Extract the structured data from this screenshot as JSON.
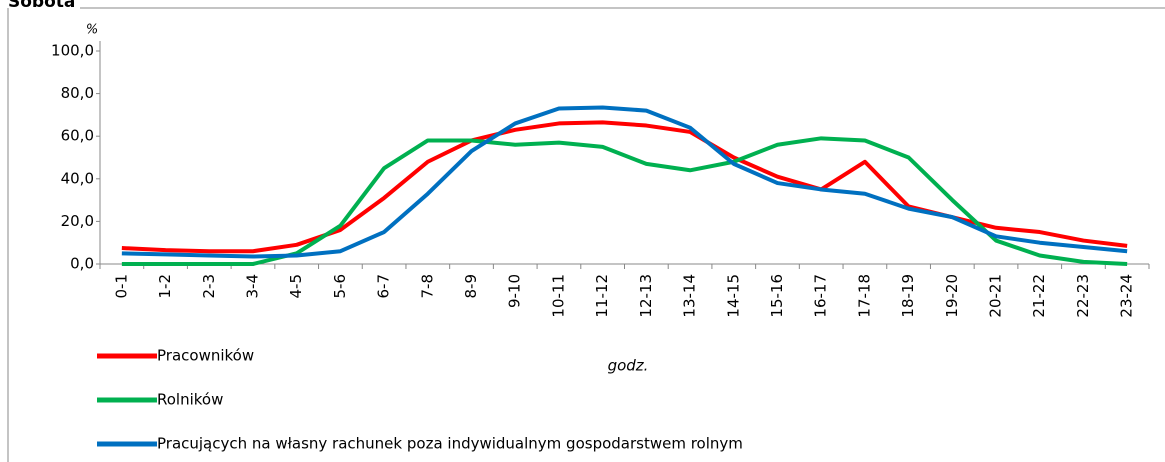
{
  "chart_data": {
    "type": "line",
    "title": "Sobota",
    "ylabel": "%",
    "xlabel": "godz.",
    "categories": [
      "0-1",
      "1-2",
      "2-3",
      "3-4",
      "4-5",
      "5-6",
      "6-7",
      "7-8",
      "8-9",
      "9-10",
      "10-11",
      "11-12",
      "12-13",
      "13-14",
      "14-15",
      "15-16",
      "16-17",
      "17-18",
      "18-19",
      "19-20",
      "20-21",
      "21-22",
      "22-23",
      "23-24"
    ],
    "series": [
      {
        "name": "Pracowników",
        "color": "#ff0000",
        "values": [
          7.5,
          6.5,
          6,
          6,
          9,
          16,
          31,
          48,
          58,
          63,
          66,
          66.5,
          65,
          62,
          50,
          41,
          35,
          48,
          27,
          22,
          17,
          15,
          11,
          8.5
        ]
      },
      {
        "name": "Rolników",
        "color": "#00b050",
        "values": [
          0,
          0,
          0,
          0,
          5,
          18,
          45,
          58,
          58,
          56,
          57,
          55,
          47,
          44,
          48,
          56,
          59,
          58,
          50,
          30,
          11,
          4,
          1,
          0
        ]
      },
      {
        "name": "Pracujących na własny rachunek poza indywidualnym gospodarstwem rolnym",
        "color": "#0070c0",
        "values": [
          5,
          4.5,
          4,
          3.5,
          4,
          6,
          15,
          33,
          53,
          66,
          73,
          73.5,
          72,
          64,
          47,
          38,
          35,
          33,
          26,
          22,
          13,
          10,
          8,
          6
        ]
      }
    ],
    "ylim": [
      0,
      100
    ],
    "yticks": [
      {
        "value": 0,
        "label": "0,0"
      },
      {
        "value": 20,
        "label": "20,0"
      },
      {
        "value": 40,
        "label": "40,0"
      },
      {
        "value": 60,
        "label": "60,0"
      },
      {
        "value": 80,
        "label": "80,0"
      },
      {
        "value": 100,
        "label": "100,0"
      }
    ],
    "grid": false
  }
}
